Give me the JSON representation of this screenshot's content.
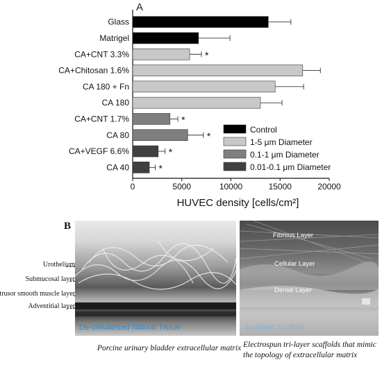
{
  "panel_a_label": "A",
  "panel_b_label": "B",
  "chart_data": {
    "type": "bar",
    "orientation": "horizontal",
    "categories": [
      "Glass",
      "Matrigel",
      "CA+CNT 3.3%",
      "CA+Chitosan 1.6%",
      "CA 180 + Fn",
      "CA 180",
      "CA+CNT 1.7%",
      "CA 80",
      "CA+VEGF 6.6%",
      "CA 40"
    ],
    "values": [
      13800,
      6700,
      5800,
      17300,
      14500,
      13000,
      3800,
      5600,
      2600,
      1700
    ],
    "errors": [
      2300,
      3200,
      1200,
      1800,
      2900,
      2200,
      800,
      1600,
      700,
      600
    ],
    "groups": [
      "Control",
      "Control",
      "1-5 µm Diameter",
      "1-5 µm Diameter",
      "1-5 µm Diameter",
      "1-5 µm Diameter",
      "0.1-1 µm Diameter",
      "0.1-1 µm Diameter",
      "0.01-0.1 µm Diameter",
      "0.01-0.1 µm Diameter"
    ],
    "significance": [
      "",
      "",
      "*",
      "",
      "",
      "",
      "*",
      "*",
      "*",
      "*"
    ],
    "xlabel": "HUVEC density [cells/cm²]",
    "xlim": [
      0,
      20000
    ],
    "xticks": [
      0,
      5000,
      10000,
      15000,
      20000
    ],
    "legend_placement": "bottom-right",
    "legend": [
      {
        "label": "Control",
        "color": "#000000"
      },
      {
        "label": "1-5 μm Diameter",
        "color": "#c8c8c8"
      },
      {
        "label": "0.1-1 μm Diameter",
        "color": "#7f7f7f"
      },
      {
        "label": "0.01-0.1 μm Diameter",
        "color": "#404040"
      }
    ],
    "group_colors": {
      "Control": "#000000",
      "1-5 µm Diameter": "#c8c8c8",
      "0.1-1 µm Diameter": "#7f7f7f",
      "0.01-0.1 µm Diameter": "#404040"
    }
  },
  "left_photo": {
    "caption": "De-cellularized Natural Tissue",
    "side_labels": [
      "Urothelium",
      "Submucosal layer",
      "Detrusor smooth muscle layer",
      "Adventitial layer"
    ],
    "figure_caption": "Porcine urinary bladder extracellular matrix"
  },
  "right_photo": {
    "caption": "Synthetic Scaffold",
    "layer_tags": [
      "Fibrous Layer",
      "Cellular Layer",
      "Dense Layer"
    ],
    "figure_caption": "Electrospun tri-layer scaffolds that mimic the topology of extracellular matrix"
  }
}
